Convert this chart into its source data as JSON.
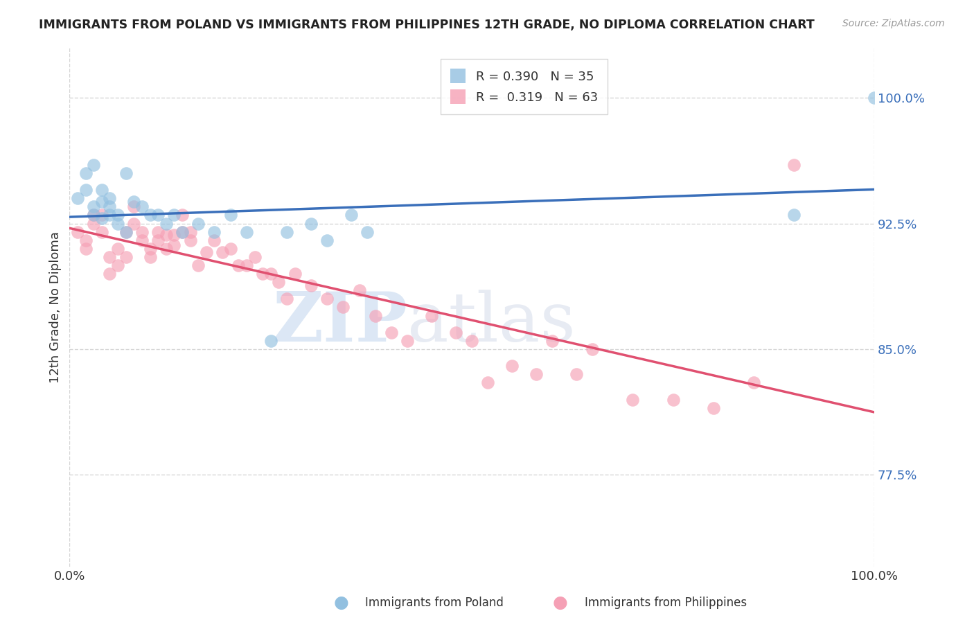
{
  "title": "IMMIGRANTS FROM POLAND VS IMMIGRANTS FROM PHILIPPINES 12TH GRADE, NO DIPLOMA CORRELATION CHART",
  "source": "Source: ZipAtlas.com",
  "ylabel": "12th Grade, No Diploma",
  "xlim": [
    0.0,
    1.0
  ],
  "ylim": [
    0.72,
    1.03
  ],
  "yticks": [
    0.775,
    0.85,
    0.925,
    1.0
  ],
  "ytick_labels": [
    "77.5%",
    "85.0%",
    "92.5%",
    "100.0%"
  ],
  "poland_R": 0.39,
  "poland_N": 35,
  "philippines_R": 0.319,
  "philippines_N": 63,
  "poland_color": "#92c0e0",
  "philippines_color": "#f5a0b5",
  "poland_line_color": "#3a6fba",
  "philippines_line_color": "#e05070",
  "legend_label_poland": "Immigrants from Poland",
  "legend_label_philippines": "Immigrants from Philippines",
  "watermark_zip": "ZIP",
  "watermark_atlas": "atlas",
  "poland_x": [
    0.01,
    0.02,
    0.02,
    0.03,
    0.03,
    0.03,
    0.04,
    0.04,
    0.04,
    0.05,
    0.05,
    0.05,
    0.06,
    0.06,
    0.07,
    0.07,
    0.08,
    0.09,
    0.1,
    0.11,
    0.12,
    0.13,
    0.14,
    0.16,
    0.18,
    0.2,
    0.22,
    0.25,
    0.27,
    0.3,
    0.32,
    0.35,
    0.37,
    0.9,
    1.0
  ],
  "poland_y": [
    0.94,
    0.945,
    0.955,
    0.935,
    0.93,
    0.96,
    0.928,
    0.938,
    0.945,
    0.93,
    0.935,
    0.94,
    0.925,
    0.93,
    0.92,
    0.955,
    0.938,
    0.935,
    0.93,
    0.93,
    0.925,
    0.93,
    0.92,
    0.925,
    0.92,
    0.93,
    0.92,
    0.855,
    0.92,
    0.925,
    0.915,
    0.93,
    0.92,
    0.93,
    1.0
  ],
  "philippines_x": [
    0.01,
    0.02,
    0.02,
    0.03,
    0.03,
    0.04,
    0.04,
    0.05,
    0.05,
    0.06,
    0.06,
    0.07,
    0.07,
    0.08,
    0.08,
    0.09,
    0.09,
    0.1,
    0.1,
    0.11,
    0.11,
    0.12,
    0.12,
    0.13,
    0.13,
    0.14,
    0.14,
    0.15,
    0.15,
    0.16,
    0.17,
    0.18,
    0.19,
    0.2,
    0.21,
    0.22,
    0.23,
    0.24,
    0.25,
    0.26,
    0.27,
    0.28,
    0.3,
    0.32,
    0.34,
    0.36,
    0.38,
    0.4,
    0.42,
    0.45,
    0.48,
    0.5,
    0.52,
    0.55,
    0.58,
    0.6,
    0.63,
    0.65,
    0.7,
    0.75,
    0.8,
    0.85,
    0.9
  ],
  "philippines_y": [
    0.92,
    0.915,
    0.91,
    0.925,
    0.93,
    0.92,
    0.93,
    0.905,
    0.895,
    0.9,
    0.91,
    0.905,
    0.92,
    0.925,
    0.935,
    0.915,
    0.92,
    0.905,
    0.91,
    0.915,
    0.92,
    0.91,
    0.918,
    0.912,
    0.918,
    0.92,
    0.93,
    0.915,
    0.92,
    0.9,
    0.908,
    0.915,
    0.908,
    0.91,
    0.9,
    0.9,
    0.905,
    0.895,
    0.895,
    0.89,
    0.88,
    0.895,
    0.888,
    0.88,
    0.875,
    0.885,
    0.87,
    0.86,
    0.855,
    0.87,
    0.86,
    0.855,
    0.83,
    0.84,
    0.835,
    0.855,
    0.835,
    0.85,
    0.82,
    0.82,
    0.815,
    0.83,
    0.96
  ],
  "background_color": "#ffffff",
  "grid_color": "#cccccc"
}
